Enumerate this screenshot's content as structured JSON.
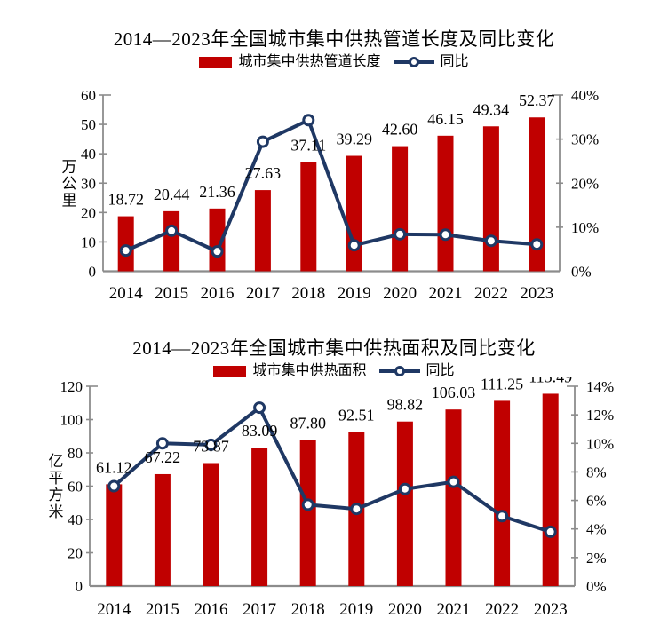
{
  "page_background": "#ffffff",
  "chart_data": [
    {
      "type": "bar",
      "combo": "bar+line",
      "title": "2014—2023年全国城市集中供热管道长度及同比变化",
      "legend": {
        "position": "top",
        "bar_label": "城市集中供热管道长度",
        "line_label": "同比"
      },
      "categories": [
        "2014",
        "2015",
        "2016",
        "2017",
        "2018",
        "2019",
        "2020",
        "2021",
        "2022",
        "2023"
      ],
      "series": [
        {
          "name": "城市集中供热管道长度",
          "type": "bar",
          "axis": "left",
          "values": [
            18.72,
            20.44,
            21.36,
            27.63,
            37.11,
            39.29,
            42.6,
            46.15,
            49.34,
            52.37
          ],
          "data_labels": [
            "18.72",
            "20.44",
            "21.36",
            "27.63",
            "37.11",
            "39.29",
            "42.60",
            "46.15",
            "49.34",
            "52.37"
          ]
        },
        {
          "name": "同比",
          "type": "line",
          "axis": "right",
          "values_percent": [
            4.7,
            9.2,
            4.5,
            29.4,
            34.3,
            5.9,
            8.4,
            8.3,
            6.9,
            6.1
          ]
        }
      ],
      "left_axis": {
        "title": "万公里",
        "min": 0,
        "max": 60,
        "step": 10,
        "tick_labels": [
          "0",
          "10",
          "20",
          "30",
          "40",
          "50",
          "60"
        ]
      },
      "right_axis": {
        "title": "",
        "min": 0,
        "max": 40,
        "step": 10,
        "tick_labels": [
          "0%",
          "10%",
          "20%",
          "30%",
          "40%"
        ]
      },
      "grid": false,
      "colors": {
        "bar": "#c00000",
        "line": "#1f3864",
        "marker_fill": "#ffffff",
        "axis": "#8c8c8c",
        "text": "#000000"
      }
    },
    {
      "type": "bar",
      "combo": "bar+line",
      "title": "2014—2023年全国城市集中供热面积及同比变化",
      "legend": {
        "position": "top",
        "bar_label": "城市集中供热面积",
        "line_label": "同比"
      },
      "categories": [
        "2014",
        "2015",
        "2016",
        "2017",
        "2018",
        "2019",
        "2020",
        "2021",
        "2022",
        "2023"
      ],
      "series": [
        {
          "name": "城市集中供热面积",
          "type": "bar",
          "axis": "left",
          "values": [
            61.12,
            67.22,
            73.87,
            83.09,
            87.8,
            92.51,
            98.82,
            106.03,
            111.25,
            115.49
          ],
          "data_labels": [
            "61.12",
            "67.22",
            "73.87",
            "83.09",
            "87.80",
            "92.51",
            "98.82",
            "106.03",
            "111.25",
            "115.49"
          ]
        },
        {
          "name": "同比",
          "type": "line",
          "axis": "right",
          "values_percent": [
            7.0,
            10.0,
            9.9,
            12.5,
            5.7,
            5.4,
            6.8,
            7.3,
            4.9,
            3.8
          ]
        }
      ],
      "left_axis": {
        "title": "亿平方米",
        "min": 0,
        "max": 120,
        "step": 20,
        "tick_labels": [
          "0",
          "20",
          "40",
          "60",
          "80",
          "100",
          "120"
        ]
      },
      "right_axis": {
        "title": "",
        "min": 0,
        "max": 14,
        "step": 2,
        "tick_labels": [
          "0%",
          "2%",
          "4%",
          "6%",
          "8%",
          "10%",
          "12%",
          "14%"
        ]
      },
      "grid": false,
      "colors": {
        "bar": "#c00000",
        "line": "#1f3864",
        "marker_fill": "#ffffff",
        "axis": "#8c8c8c",
        "text": "#000000"
      }
    }
  ]
}
